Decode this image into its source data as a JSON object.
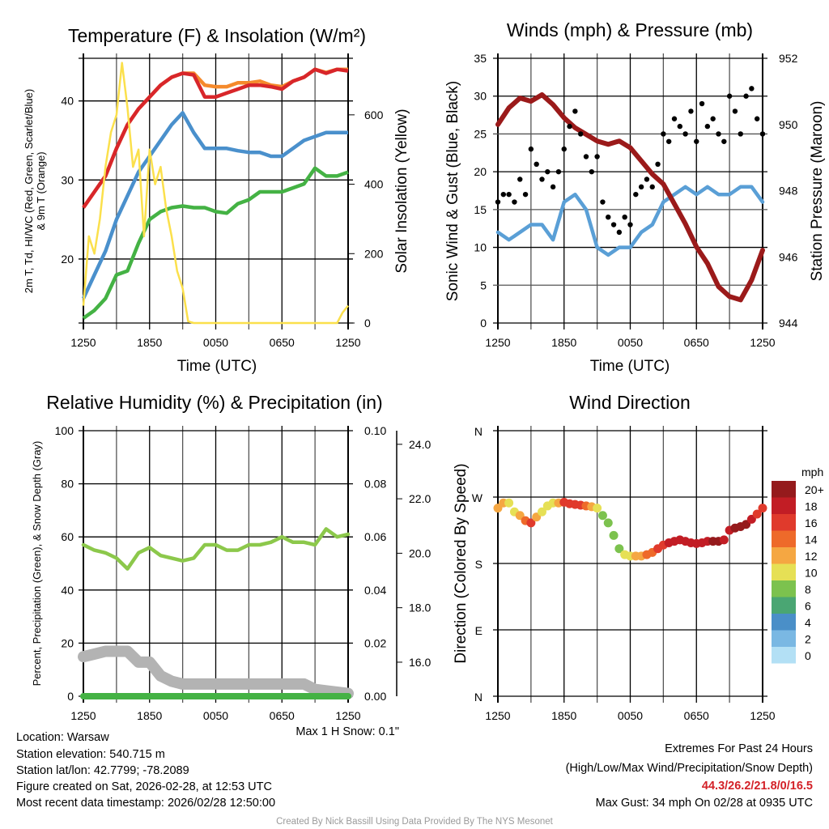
{
  "footer": {
    "location": "Location: Warsaw",
    "elevation": "Station elevation: 540.715 m",
    "latlon": "Station lat/lon: 42.7799; -78.2089",
    "created": "Figure created on Sat, 2026-02-28, at 12:53 UTC",
    "recent": "Most recent data timestamp: 2026/02/28 12:50:00",
    "extremes_title": "Extremes For Past 24 Hours",
    "extremes_desc": "(High/Low/Max Wind/Precipitation/Snow Depth)",
    "extremes_values": "44.3/26.2/21.8/0/16.5",
    "max_gust": "Max Gust: 34 mph On 02/28 at 0935 UTC",
    "max_snow": "Max 1 H Snow: 0.1\"",
    "credit": "Created By Nick Bassill Using Data Provided By The NYS Mesonet"
  },
  "chart_data": [
    {
      "type": "line",
      "title": "Temperature (F) & Insolation (W/m²)",
      "xlabel": "Time (UTC)",
      "ylabel_lines": [
        "2m T, Td, HI/WC (Red, Green, Scarlet/Blue)",
        "& 9m T (Orange)"
      ],
      "y2label": "Solar Insolation (Yellow)",
      "xticks": [
        "1250",
        "1850",
        "0050",
        "0650",
        "1250"
      ],
      "yticks": [
        "20",
        "30",
        "40"
      ],
      "y2ticks": [
        "0",
        "200",
        "400",
        "600"
      ],
      "ylim": [
        11.9,
        45.4
      ],
      "y2lim": [
        0,
        763
      ],
      "x_hours": [
        0,
        1,
        2,
        3,
        4,
        5,
        6,
        7,
        8,
        9,
        10,
        11,
        12,
        13,
        14,
        15,
        16,
        17,
        18,
        19,
        20,
        21,
        22,
        23,
        24
      ],
      "series": [
        {
          "name": "9m T",
          "color": "#f58a2c",
          "axis": "left",
          "values": [
            26.5,
            28.5,
            30.5,
            34,
            37,
            39,
            40.5,
            42,
            43,
            43.5,
            43.5,
            42,
            41.8,
            41.8,
            42.3,
            42.3,
            42.5,
            42,
            41.8,
            42.5,
            43,
            44,
            43.6,
            44,
            44
          ]
        },
        {
          "name": "2m T",
          "color": "#d8262a",
          "axis": "left",
          "values": [
            26.5,
            28.5,
            30.5,
            34,
            37,
            39,
            40.5,
            42,
            43,
            43.5,
            43.3,
            40.5,
            40.5,
            41,
            41.5,
            42,
            42,
            41.8,
            41.5,
            42.5,
            43,
            44,
            43.5,
            44,
            43.8
          ]
        },
        {
          "name": "HI/WC",
          "color": "#4a90cc",
          "axis": "left",
          "values": [
            15,
            18,
            21,
            25,
            28,
            31,
            33,
            35,
            37,
            38.5,
            36,
            34,
            34,
            34,
            33.7,
            33.5,
            33.5,
            33,
            33,
            34,
            35,
            35.5,
            36,
            36,
            36
          ]
        },
        {
          "name": "Td",
          "color": "#44b244",
          "axis": "left",
          "values": [
            12.5,
            13.5,
            15,
            18,
            18.5,
            22,
            25,
            26,
            26.5,
            26.7,
            26.5,
            26.5,
            26,
            25.8,
            27,
            27.5,
            28.5,
            28.5,
            28.5,
            29,
            29.5,
            31.5,
            30.5,
            30.5,
            31
          ]
        },
        {
          "name": "Solar Insolation",
          "color": "#fbe04c",
          "axis": "right",
          "x": [
            0,
            0.5,
            1,
            1.5,
            2,
            2.5,
            3,
            3.5,
            4,
            4.5,
            5,
            5.5,
            6,
            6.5,
            7,
            7.5,
            8,
            8.5,
            9,
            9.5,
            10,
            12,
            14,
            16,
            18,
            20,
            22,
            23,
            23.5,
            24
          ],
          "values": [
            50,
            250,
            200,
            300,
            450,
            550,
            600,
            750,
            620,
            450,
            500,
            250,
            500,
            400,
            450,
            330,
            250,
            150,
            100,
            5,
            0,
            0,
            0,
            0,
            0,
            0,
            0,
            0,
            30,
            50
          ]
        }
      ]
    },
    {
      "type": "line",
      "title": "Winds (mph) & Pressure (mb)",
      "xlabel": "Time (UTC)",
      "ylabel": "Sonic Wind & Gust (Blue, Black)",
      "y2label": "Station Pressure (Maroon)",
      "xticks": [
        "1250",
        "1850",
        "0050",
        "0650",
        "1250"
      ],
      "yticks": [
        "0",
        "5",
        "10",
        "15",
        "20",
        "25",
        "30",
        "35"
      ],
      "y2ticks": [
        "944",
        "946",
        "948",
        "950",
        "952"
      ],
      "ylim": [
        0,
        35
      ],
      "y2lim": [
        944,
        952
      ],
      "x_hours": [
        0,
        1,
        2,
        3,
        4,
        5,
        6,
        7,
        8,
        9,
        10,
        11,
        12,
        13,
        14,
        15,
        16,
        17,
        18,
        19,
        20,
        21,
        22,
        23,
        24
      ],
      "series": [
        {
          "name": "Sonic Wind",
          "color": "#5a9fd6",
          "axis": "left",
          "values": [
            12,
            11,
            12,
            13,
            13,
            11,
            16,
            17,
            15,
            10,
            9,
            10,
            10,
            12,
            13,
            16,
            17,
            18,
            17,
            18,
            17,
            17,
            18,
            18,
            16
          ]
        },
        {
          "name": "Station Pressure",
          "color": "#9b1a1a",
          "axis": "right",
          "values": [
            950.0,
            950.5,
            950.8,
            950.7,
            950.9,
            950.6,
            950.2,
            949.9,
            949.7,
            949.5,
            949.4,
            949.5,
            949.3,
            948.9,
            948.5,
            948.2,
            947.6,
            947.0,
            946.3,
            945.8,
            945.1,
            944.8,
            944.7,
            945.3,
            946.2
          ]
        },
        {
          "name": "Gust",
          "color": "#000000",
          "axis": "left",
          "marker": "dot",
          "x": [
            0,
            0.5,
            1,
            1.5,
            2,
            2.5,
            3,
            3.5,
            4,
            4.5,
            5,
            5.5,
            6,
            6.5,
            7,
            7.5,
            8,
            8.5,
            9,
            9.5,
            10,
            10.5,
            11,
            11.5,
            12,
            12.5,
            13,
            13.5,
            14,
            14.5,
            15,
            15.5,
            16,
            16.5,
            17,
            17.5,
            18,
            18.5,
            19,
            19.5,
            20,
            20.5,
            21,
            21.5,
            22,
            22.5,
            23,
            23.5,
            24
          ],
          "values": [
            16,
            17,
            17,
            16,
            19,
            17,
            23,
            21,
            19,
            20,
            18,
            20,
            23,
            26,
            28,
            25,
            22,
            20,
            22,
            16,
            14,
            13,
            12,
            14,
            13,
            17,
            18,
            19,
            18,
            21,
            25,
            24,
            27,
            26,
            25,
            28,
            24,
            29,
            26,
            27,
            25,
            24,
            30,
            28,
            25,
            30,
            31,
            27,
            25
          ]
        }
      ]
    },
    {
      "type": "line",
      "title": "Relative Humidity (%) & Precipitation (in)",
      "ylabel": "Percent, Precipitation (Green), & Snow Depth (Gray)",
      "xticks": [
        "1250",
        "1850",
        "0050",
        "0650",
        "1250"
      ],
      "yticks": [
        "0",
        "20",
        "40",
        "60",
        "80",
        "100"
      ],
      "y2ticks": [
        "0.00",
        "0.02",
        "0.04",
        "0.06",
        "0.08",
        "0.10"
      ],
      "y3ticks": [
        "16.0",
        "18.0",
        "20.0",
        "22.0",
        "24.0"
      ],
      "ylim": [
        0,
        100
      ],
      "y2lim": [
        0,
        0.1
      ],
      "y3lim": [
        14.75,
        24.5
      ],
      "x_hours": [
        0,
        1,
        2,
        3,
        4,
        5,
        6,
        7,
        8,
        9,
        10,
        11,
        12,
        13,
        14,
        15,
        16,
        17,
        18,
        19,
        20,
        21,
        22,
        23,
        24
      ],
      "series": [
        {
          "name": "Snow Depth",
          "color": "#b3b3b3",
          "axis": "third",
          "values": [
            16.2,
            16.3,
            16.4,
            16.4,
            16.4,
            16.0,
            16.0,
            15.5,
            15.3,
            15.2,
            15.2,
            15.2,
            15.2,
            15.2,
            15.2,
            15.2,
            15.2,
            15.2,
            15.2,
            15.2,
            15.2,
            15.0,
            14.95,
            14.9,
            14.85
          ]
        },
        {
          "name": "Precipitation",
          "color": "#44b244",
          "axis": "right",
          "values": [
            0,
            0,
            0,
            0,
            0,
            0,
            0,
            0,
            0,
            0,
            0,
            0,
            0,
            0,
            0,
            0,
            0,
            0,
            0,
            0,
            0,
            0,
            0,
            0,
            0
          ]
        },
        {
          "name": "Relative Humidity",
          "color": "#8cc84b",
          "axis": "left",
          "values": [
            57,
            55,
            54,
            52,
            48,
            54,
            56,
            53,
            52,
            51,
            52,
            57,
            57,
            55,
            55,
            57,
            57,
            58,
            60,
            58,
            58,
            57,
            63,
            60,
            61
          ]
        }
      ]
    },
    {
      "type": "scatter",
      "title": "Wind Direction",
      "ylabel": "Direction (Colored By Speed)",
      "xticks": [
        "1250",
        "1850",
        "0050",
        "0650",
        "1250"
      ],
      "yticks": [
        "N",
        "E",
        "S",
        "W",
        "N"
      ],
      "ylim": [
        0,
        360
      ],
      "x_hours": [
        0,
        0.5,
        1,
        1.5,
        2,
        2.5,
        3,
        3.5,
        4,
        4.5,
        5,
        5.5,
        6,
        6.5,
        7,
        7.5,
        8,
        8.5,
        9,
        9.5,
        10,
        10.5,
        11,
        11.5,
        12,
        12.5,
        13,
        13.5,
        14,
        14.5,
        15,
        15.5,
        16,
        16.5,
        17,
        17.5,
        18,
        18.5,
        19,
        19.5,
        20,
        20.5,
        21,
        21.5,
        22,
        22.5,
        23,
        23.5,
        24
      ],
      "direction": [
        255,
        262,
        262,
        250,
        245,
        238,
        235,
        243,
        250,
        258,
        262,
        262,
        263,
        261,
        260,
        259,
        258,
        257,
        255,
        245,
        235,
        218,
        200,
        192,
        190,
        190,
        190,
        192,
        195,
        200,
        205,
        208,
        210,
        212,
        210,
        208,
        207,
        208,
        210,
        210,
        210,
        212,
        225,
        228,
        230,
        233,
        240,
        247,
        255
      ],
      "speed": [
        12,
        12,
        11,
        11,
        12,
        14,
        16,
        13,
        10,
        10,
        11,
        12,
        16,
        17,
        17,
        16,
        15,
        12,
        10,
        9,
        8,
        8,
        9,
        10,
        11,
        12,
        13,
        14,
        15,
        16,
        17,
        18,
        19,
        18,
        18,
        18,
        18,
        19,
        19,
        20,
        20,
        19,
        19,
        20,
        21,
        20,
        18,
        17,
        16
      ],
      "legend_title": "mph",
      "legend_labels": [
        "20+",
        "18",
        "16",
        "14",
        "12",
        "10",
        "8",
        "6",
        "4",
        "2",
        "0"
      ],
      "legend_colors": [
        "#951a1c",
        "#c21d25",
        "#e03a2c",
        "#ee6a2a",
        "#f5a742",
        "#e6e055",
        "#7cc24e",
        "#4aa673",
        "#4a8fc8",
        "#7ab8e3",
        "#b3e0f5"
      ]
    }
  ]
}
